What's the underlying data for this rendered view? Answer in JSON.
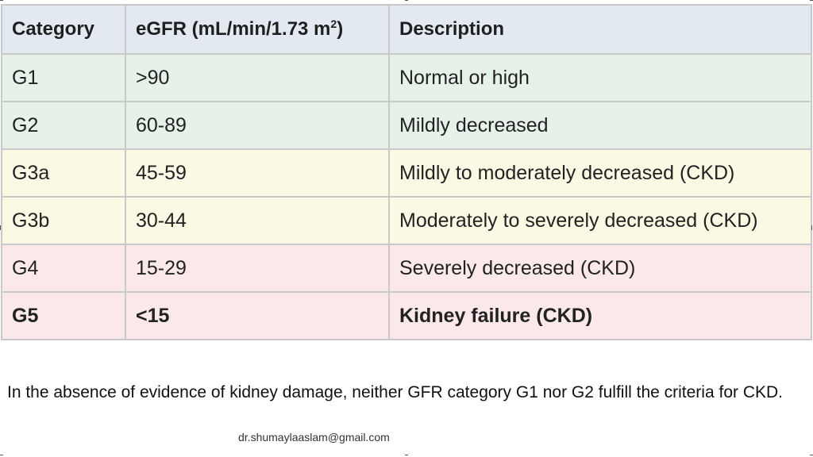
{
  "table": {
    "headers": {
      "category": "Category",
      "egfr": "eGFR (mL/min/1.73 m",
      "egfr_sup": "2",
      "egfr_close": ")",
      "description": "Description"
    },
    "rows": [
      {
        "category": "G1",
        "egfr": ">90",
        "description": "Normal or high",
        "tint": "green"
      },
      {
        "category": "G2",
        "egfr": "60-89",
        "description": "Mildly decreased",
        "tint": "green"
      },
      {
        "category": "G3a",
        "egfr": "45-59",
        "description": "Mildly to moderately decreased (CKD)",
        "tint": "yellow"
      },
      {
        "category": "G3b",
        "egfr": "30-44",
        "description": "Moderately to severely decreased (CKD)",
        "tint": "yellow"
      },
      {
        "category": "G4",
        "egfr": "15-29",
        "description": "Severely decreased (CKD)",
        "tint": "pink"
      },
      {
        "category": "G5",
        "egfr": "<15",
        "description": "Kidney failure (CKD)",
        "tint": "pink",
        "bold": true
      }
    ]
  },
  "footnote": "In the absence of evidence of kidney damage, neither GFR category G1 nor G2 fulfill the criteria for CKD.",
  "email": "dr.shumaylaaslam@gmail.com",
  "colors": {
    "header_bg": "#e3e9f1",
    "green": "#e6f1ea",
    "yellow": "#fbf8e4",
    "pink": "#fbe9ea",
    "border": "#c9c9c9"
  }
}
